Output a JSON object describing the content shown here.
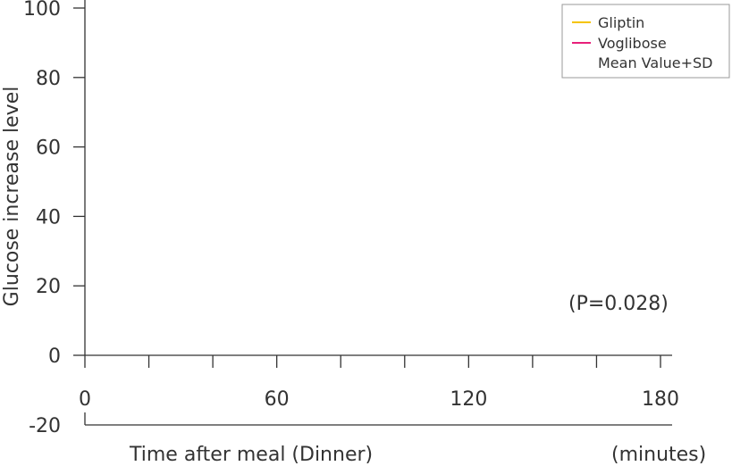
{
  "chart_data": {
    "type": "line",
    "title": "",
    "xlabel": "Time after meal (Dinner)",
    "x_unit_label": "(minutes)",
    "ylabel": "Glucose increase level",
    "xlim": [
      0,
      180
    ],
    "ylim": [
      -20,
      100
    ],
    "x_ticks": [
      0,
      60,
      120,
      180
    ],
    "x_minor_ticks": [
      20,
      40,
      80,
      100,
      140,
      160
    ],
    "y_ticks": [
      -20,
      0,
      20,
      40,
      60,
      80,
      100
    ],
    "grid": false,
    "legend": {
      "placement": "top-right",
      "entries": [
        {
          "label": "Gliptin",
          "color": "#f5c400"
        },
        {
          "label": "Voglibose",
          "color": "#e8207a"
        },
        {
          "label": "Mean Value+SD",
          "color": null
        }
      ]
    },
    "annotation": "(P=0.028)",
    "series": [
      {
        "name": "Gliptin",
        "color": "#f5c400",
        "x": [],
        "y": []
      },
      {
        "name": "Voglibose",
        "color": "#e8207a",
        "x": [],
        "y": []
      }
    ]
  }
}
